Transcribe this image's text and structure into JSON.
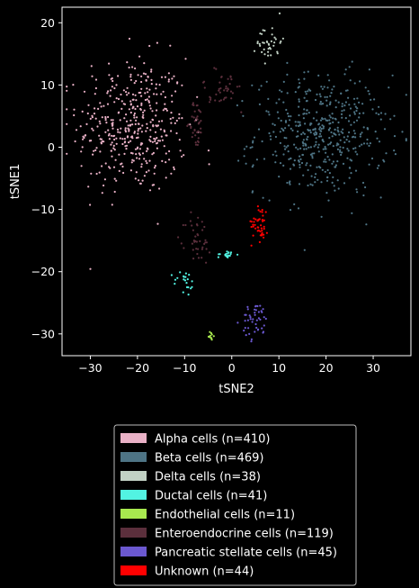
{
  "chart_data": {
    "type": "scatter",
    "title": "",
    "xlabel": "tSNE2",
    "ylabel": "tSNE1",
    "xlim": [
      -36,
      38
    ],
    "ylim": [
      -33.5,
      22.5
    ],
    "xticks": [
      -30,
      -20,
      -10,
      0,
      10,
      20,
      30
    ],
    "yticks": [
      -30,
      -20,
      -10,
      0,
      10,
      20
    ],
    "grid": false,
    "background": "#000000",
    "legend_placement": "below plot, centered",
    "series": [
      {
        "name": "Alpha cells (n=410)",
        "color": "#e9b1c6",
        "n": 410,
        "clusters": [
          {
            "cx": -21,
            "cy": 3.5,
            "sx": 5.8,
            "sy": 5.5
          }
        ]
      },
      {
        "name": "Beta cells (n=469)",
        "color": "#4e7485",
        "n": 469,
        "clusters": [
          {
            "cx": 19,
            "cy": 2,
            "sx": 7,
            "sy": 4.8
          }
        ]
      },
      {
        "name": "Delta cells (n=38)",
        "color": "#c1d1c4",
        "n": 38,
        "clusters": [
          {
            "cx": 8,
            "cy": 17,
            "sx": 1.3,
            "sy": 1.6
          }
        ]
      },
      {
        "name": "Ductal cells (n=41)",
        "color": "#52f3e2",
        "n": 41,
        "clusters": [
          {
            "cx": -10,
            "cy": -22,
            "sx": 1.2,
            "sy": 1.1
          },
          {
            "cx": -1,
            "cy": -17.2,
            "sx": 1.0,
            "sy": 0.3
          }
        ]
      },
      {
        "name": "Endothelial cells (n=11)",
        "color": "#a8e94f",
        "n": 11,
        "clusters": [
          {
            "cx": -4.5,
            "cy": -30.3,
            "sx": 0.3,
            "sy": 0.35
          }
        ]
      },
      {
        "name": "Enteroendocrine cells (n=119)",
        "color": "#5b2f3c",
        "n": 119,
        "clusters": [
          {
            "cx": -2,
            "cy": 9,
            "sx": 2.8,
            "sy": 1.8
          },
          {
            "cx": -7,
            "cy": -15,
            "sx": 1.4,
            "sy": 2.2
          },
          {
            "cx": -7.5,
            "cy": 4,
            "sx": 0.7,
            "sy": 2
          }
        ]
      },
      {
        "name": "Pancreatic stellate cells (n=45)",
        "color": "#6b58d0",
        "n": 45,
        "clusters": [
          {
            "cx": 5,
            "cy": -28,
            "sx": 1.4,
            "sy": 1.5
          }
        ]
      },
      {
        "name": "Unknown (n=44)",
        "color": "#ff0000",
        "n": 44,
        "clusters": [
          {
            "cx": 6,
            "cy": -12,
            "sx": 0.9,
            "sy": 1.6
          }
        ]
      }
    ]
  }
}
